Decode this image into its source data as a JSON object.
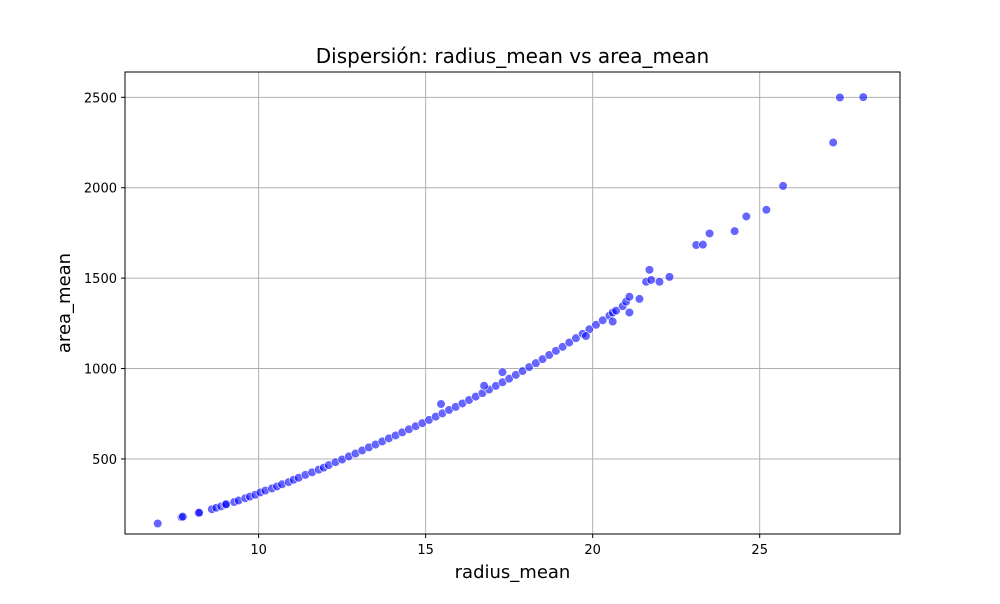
{
  "chart_data": {
    "type": "scatter",
    "title": "Dispersión: radius_mean vs area_mean",
    "xlabel": "radius_mean",
    "ylabel": "area_mean",
    "xlim": [
      6.0,
      29.2
    ],
    "ylim": [
      85,
      2640
    ],
    "xticks": [
      10,
      15,
      20,
      25
    ],
    "yticks": [
      500,
      1000,
      1500,
      2000,
      2500
    ],
    "grid": true,
    "point_color": "#0000ff",
    "point_edge_color": "#ffffff",
    "point_opacity": 0.6,
    "series": [
      {
        "x": [
          6.98,
          7.69,
          7.73,
          8.2,
          8.22,
          8.6,
          8.73,
          8.88,
          9.0,
          9.03,
          9.27,
          9.4,
          9.6,
          9.74,
          9.9,
          10.05,
          10.2,
          10.4,
          10.55,
          10.7,
          10.9,
          11.05,
          11.2,
          11.4,
          11.6,
          11.8,
          11.95,
          12.1,
          12.3,
          12.5,
          12.7,
          12.9,
          13.1,
          13.3,
          13.5,
          13.7,
          13.9,
          14.1,
          14.3,
          14.5,
          14.7,
          14.9,
          15.1,
          15.3,
          15.5,
          15.7,
          15.9,
          16.1,
          16.3,
          16.5,
          16.7,
          16.9,
          17.1,
          17.3,
          17.5,
          17.7,
          17.9,
          18.1,
          18.3,
          18.5,
          18.7,
          18.9,
          19.1,
          19.3,
          19.5,
          19.7,
          19.9,
          20.1,
          20.3,
          20.5,
          20.6,
          20.7,
          20.9,
          21.0,
          21.1,
          21.4,
          21.6,
          21.7,
          21.75,
          22.0,
          22.3,
          23.1,
          23.3,
          23.5,
          24.25,
          24.6,
          25.2,
          25.7,
          27.2,
          27.4,
          28.1,
          15.46,
          16.75,
          17.3,
          19.8,
          21.1,
          20.6
        ],
        "y": [
          143,
          178,
          181,
          201,
          203,
          222,
          230,
          238,
          246,
          250,
          262,
          270,
          283,
          292,
          302,
          315,
          325,
          337,
          348,
          360,
          372,
          385,
          396,
          412,
          426,
          441,
          452,
          466,
          482,
          497,
          514,
          530,
          547,
          564,
          580,
          597,
          614,
          630,
          647,
          664,
          681,
          698,
          716,
          734,
          752,
          771,
          788,
          807,
          826,
          845,
          864,
          884,
          904,
          924,
          944,
          965,
          986,
          1008,
          1030,
          1052,
          1075,
          1098,
          1120,
          1144,
          1168,
          1192,
          1217,
          1242,
          1267,
          1292,
          1310,
          1320,
          1345,
          1370,
          1397,
          1385,
          1480,
          1546,
          1490,
          1480,
          1507,
          1683,
          1685,
          1747,
          1760,
          1841,
          1878,
          2010,
          2250,
          2499,
          2501,
          804,
          905,
          980,
          1180,
          1310,
          1260
        ]
      }
    ]
  }
}
